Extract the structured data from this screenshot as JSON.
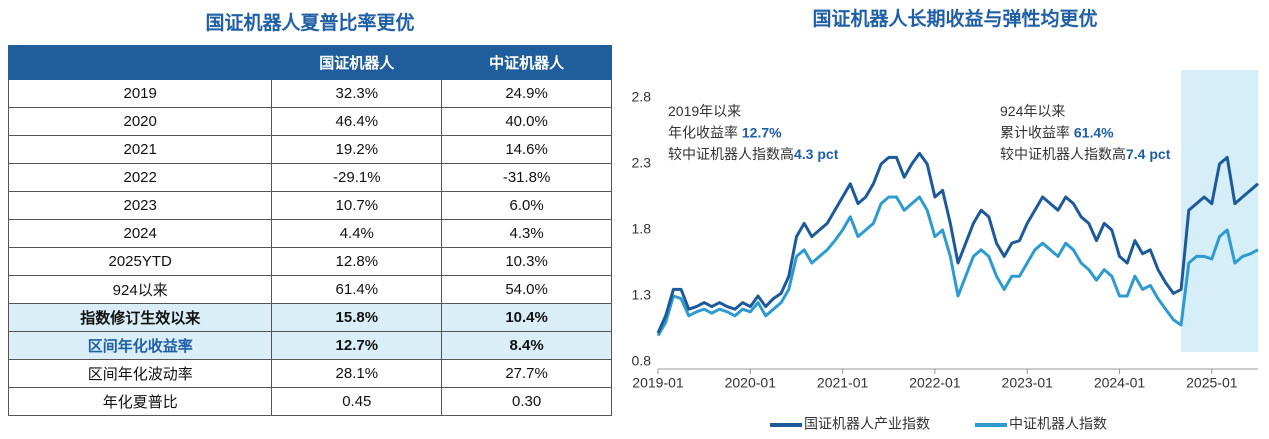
{
  "table": {
    "title": "国证机器人夏普比率更优",
    "header": [
      "国证机器人",
      "中证机器人"
    ],
    "rows": [
      [
        "2019",
        "32.3%",
        "24.9%"
      ],
      [
        "2020",
        "46.4%",
        "40.0%"
      ],
      [
        "2021",
        "19.2%",
        "14.6%"
      ],
      [
        "2022",
        "-29.1%",
        "-31.8%"
      ],
      [
        "2023",
        "10.7%",
        "6.0%"
      ],
      [
        "2024",
        "4.4%",
        "4.3%"
      ],
      [
        "2025YTD",
        "12.8%",
        "10.3%"
      ],
      [
        "924以来",
        "61.4%",
        "54.0%"
      ],
      [
        "指数修订生效以来",
        "15.8%",
        "10.4%"
      ],
      [
        "区间年化收益率",
        "12.7%",
        "8.4%"
      ],
      [
        "区间年化波动率",
        "28.1%",
        "27.7%"
      ],
      [
        "年化夏普比",
        "0.45",
        "0.30"
      ]
    ]
  },
  "chart_data": {
    "type": "line",
    "title": "国证机器人长期收益与弹性均更优",
    "x": [
      "2019-01",
      "2019-02",
      "2019-03",
      "2019-04",
      "2019-05",
      "2019-06",
      "2019-07",
      "2019-08",
      "2019-09",
      "2019-10",
      "2019-11",
      "2019-12",
      "2020-01",
      "2020-02",
      "2020-03",
      "2020-04",
      "2020-05",
      "2020-06",
      "2020-07",
      "2020-08",
      "2020-09",
      "2020-10",
      "2020-11",
      "2020-12",
      "2021-01",
      "2021-02",
      "2021-03",
      "2021-04",
      "2021-05",
      "2021-06",
      "2021-07",
      "2021-08",
      "2021-09",
      "2021-10",
      "2021-11",
      "2021-12",
      "2022-01",
      "2022-02",
      "2022-03",
      "2022-04",
      "2022-05",
      "2022-06",
      "2022-07",
      "2022-08",
      "2022-09",
      "2022-10",
      "2022-11",
      "2022-12",
      "2023-01",
      "2023-02",
      "2023-03",
      "2023-04",
      "2023-05",
      "2023-06",
      "2023-07",
      "2023-08",
      "2023-09",
      "2023-10",
      "2023-11",
      "2023-12",
      "2024-01",
      "2024-02",
      "2024-03",
      "2024-04",
      "2024-05",
      "2024-06",
      "2024-07",
      "2024-08",
      "2024-09",
      "2024-10",
      "2024-11",
      "2024-12",
      "2025-01",
      "2025-02",
      "2025-03",
      "2025-04",
      "2025-05",
      "2025-06",
      "2025-07"
    ],
    "series": [
      {
        "name": "国证机器人产业指数",
        "color": "#1d5a99",
        "values": [
          1.02,
          1.15,
          1.35,
          1.35,
          1.2,
          1.22,
          1.25,
          1.22,
          1.25,
          1.22,
          1.2,
          1.25,
          1.22,
          1.3,
          1.22,
          1.28,
          1.32,
          1.45,
          1.75,
          1.85,
          1.75,
          1.8,
          1.85,
          1.95,
          2.05,
          2.15,
          2.0,
          2.05,
          2.15,
          2.3,
          2.35,
          2.35,
          2.2,
          2.3,
          2.38,
          2.3,
          2.05,
          2.1,
          1.85,
          1.55,
          1.7,
          1.85,
          1.95,
          1.9,
          1.7,
          1.6,
          1.7,
          1.72,
          1.85,
          1.95,
          2.05,
          2.0,
          1.95,
          2.05,
          2.0,
          1.9,
          1.85,
          1.72,
          1.85,
          1.8,
          1.6,
          1.55,
          1.72,
          1.62,
          1.65,
          1.5,
          1.4,
          1.32,
          1.35,
          1.95,
          2.0,
          2.05,
          2.0,
          2.3,
          2.35,
          2.0,
          2.05,
          2.1,
          2.15
        ]
      },
      {
        "name": "中证机器人指数",
        "color": "#2e9bd0",
        "values": [
          1.0,
          1.1,
          1.3,
          1.28,
          1.15,
          1.18,
          1.2,
          1.17,
          1.2,
          1.18,
          1.15,
          1.2,
          1.18,
          1.25,
          1.15,
          1.2,
          1.25,
          1.35,
          1.6,
          1.65,
          1.55,
          1.6,
          1.65,
          1.72,
          1.8,
          1.9,
          1.75,
          1.8,
          1.85,
          2.0,
          2.05,
          2.05,
          1.95,
          2.0,
          2.05,
          1.95,
          1.75,
          1.8,
          1.6,
          1.3,
          1.45,
          1.6,
          1.65,
          1.6,
          1.45,
          1.35,
          1.45,
          1.45,
          1.55,
          1.65,
          1.7,
          1.65,
          1.6,
          1.7,
          1.65,
          1.55,
          1.5,
          1.42,
          1.5,
          1.45,
          1.3,
          1.3,
          1.45,
          1.35,
          1.38,
          1.28,
          1.2,
          1.12,
          1.08,
          1.55,
          1.6,
          1.6,
          1.58,
          1.75,
          1.8,
          1.55,
          1.6,
          1.62,
          1.65
        ]
      }
    ],
    "xlim": [
      "2019-01",
      "2025-07"
    ],
    "xticks": [
      "2019-01",
      "2020-01",
      "2021-01",
      "2022-01",
      "2023-01",
      "2024-01",
      "2025-01"
    ],
    "ylim": [
      0.8,
      2.8
    ],
    "yticks": [
      0.8,
      1.3,
      1.8,
      2.3,
      2.8
    ],
    "highlight_span": [
      "2024-09",
      "2025-07"
    ],
    "highlight_color": "#d5eef7",
    "annotations": [
      [
        [
          "2019年以来"
        ],
        [
          "年化收益率 ",
          "12.7%"
        ],
        [
          "较中证机器人指数高",
          "4.3 pct"
        ]
      ],
      [
        [
          "924年以来"
        ],
        [
          "累计收益率 ",
          "61.4%"
        ],
        [
          "较中证机器人指数高",
          "7.4 pct"
        ]
      ]
    ],
    "legend": "bottom"
  }
}
